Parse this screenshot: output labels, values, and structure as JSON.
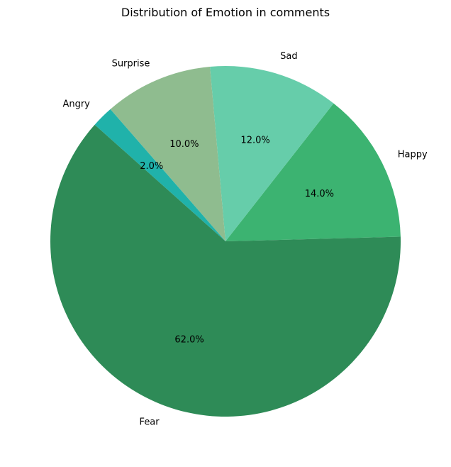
{
  "chart_data": {
    "type": "pie",
    "title": "Distribution of Emotion in comments",
    "slices": [
      {
        "label": "Happy",
        "value": 14.0,
        "pct_label": "14.0%",
        "color": "#3cb371"
      },
      {
        "label": "Sad",
        "value": 12.0,
        "pct_label": "12.0%",
        "color": "#66cdaa"
      },
      {
        "label": "Surprise",
        "value": 10.0,
        "pct_label": "10.0%",
        "color": "#8fbc8f"
      },
      {
        "label": "Angry",
        "value": 2.0,
        "pct_label": "2.0%",
        "color": "#20b2aa"
      },
      {
        "label": "Fear",
        "value": 62.0,
        "pct_label": "62.0%",
        "color": "#2e8b57"
      }
    ],
    "start_angle_deg": 1.5,
    "direction": "counterclockwise"
  }
}
